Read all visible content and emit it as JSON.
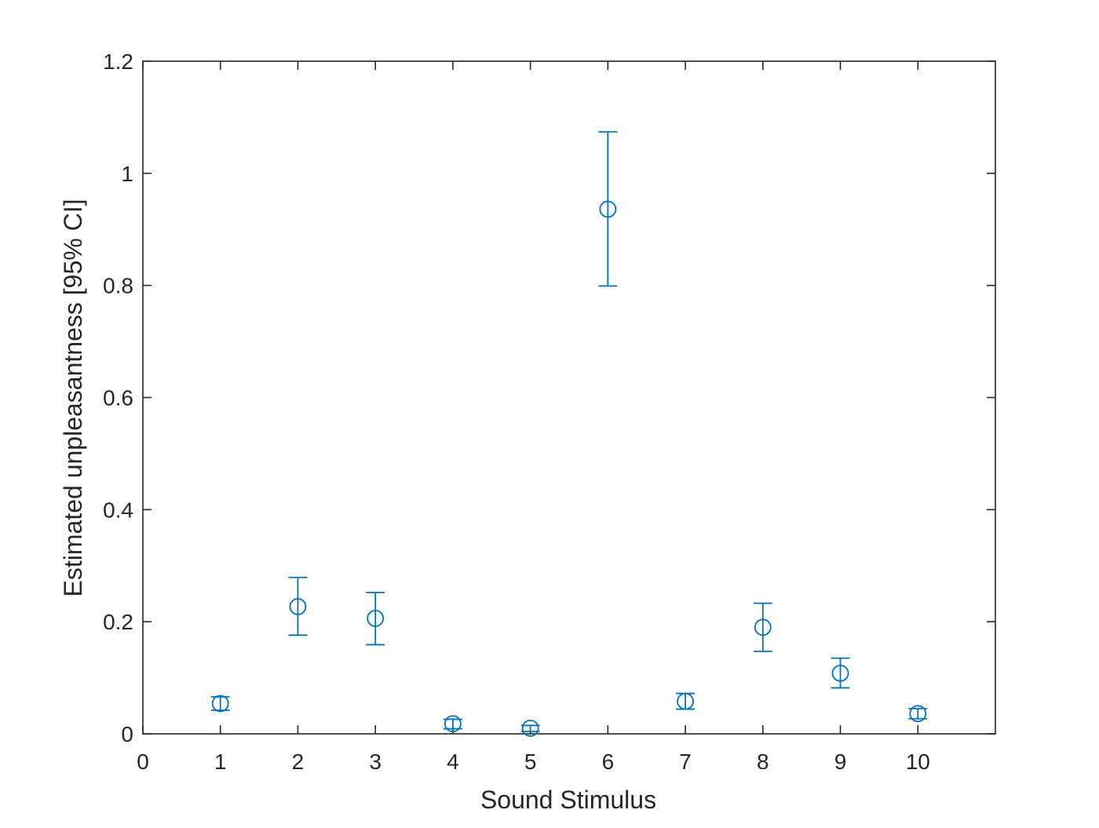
{
  "chart_data": {
    "type": "scatter",
    "title": "",
    "xlabel": "Sound Stimulus",
    "ylabel": "Estimated unpleasantness [95% CI]",
    "xlim": [
      0,
      11
    ],
    "ylim": [
      0,
      1.2
    ],
    "x_ticks": [
      0,
      1,
      2,
      3,
      4,
      5,
      6,
      7,
      8,
      9,
      10
    ],
    "x_tick_labels": [
      "0",
      "1",
      "2",
      "3",
      "4",
      "5",
      "6",
      "7",
      "8",
      "9",
      "10"
    ],
    "y_ticks": [
      0,
      0.2,
      0.4,
      0.6,
      0.8,
      1.0,
      1.2
    ],
    "y_tick_labels": [
      "0",
      "0.2",
      "0.4",
      "0.6",
      "0.8",
      "1",
      "1.2"
    ],
    "grid": false,
    "box": true,
    "marker": "circle",
    "series_color": "#0072bd",
    "axis_color": "#262626",
    "points": [
      {
        "x": 1,
        "y": 0.054,
        "lower": 0.042,
        "upper": 0.066
      },
      {
        "x": 2,
        "y": 0.227,
        "lower": 0.176,
        "upper": 0.279
      },
      {
        "x": 3,
        "y": 0.206,
        "lower": 0.159,
        "upper": 0.252
      },
      {
        "x": 4,
        "y": 0.018,
        "lower": 0.009,
        "upper": 0.026
      },
      {
        "x": 5,
        "y": 0.01,
        "lower": 0.004,
        "upper": 0.015
      },
      {
        "x": 6,
        "y": 0.936,
        "lower": 0.799,
        "upper": 1.074
      },
      {
        "x": 7,
        "y": 0.058,
        "lower": 0.044,
        "upper": 0.072
      },
      {
        "x": 8,
        "y": 0.19,
        "lower": 0.147,
        "upper": 0.233
      },
      {
        "x": 9,
        "y": 0.108,
        "lower": 0.082,
        "upper": 0.135
      },
      {
        "x": 10,
        "y": 0.036,
        "lower": 0.027,
        "upper": 0.045
      }
    ]
  }
}
